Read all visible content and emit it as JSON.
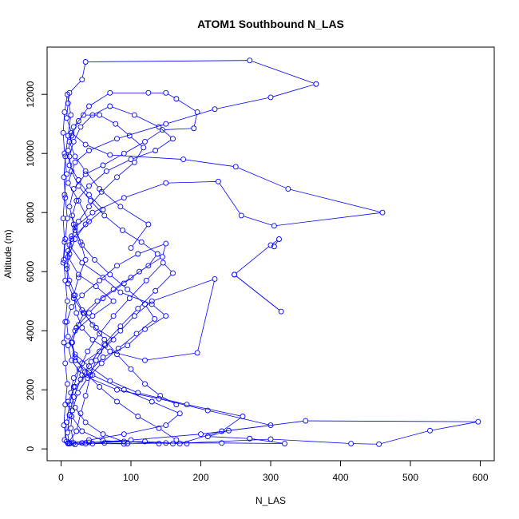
{
  "chart_data": {
    "type": "line",
    "title": "ATOM1 Southbound N_LAS",
    "xlabel": "N_LAS",
    "ylabel": "Altitude (m)",
    "xlim": [
      -20,
      620
    ],
    "ylim": [
      -400,
      13600
    ],
    "x_ticks": [
      0,
      100,
      200,
      300,
      400,
      500,
      600
    ],
    "y_ticks": [
      0,
      2000,
      4000,
      6000,
      8000,
      10000,
      12000
    ],
    "x_tick_labels": [
      "0",
      "100",
      "200",
      "300",
      "400",
      "500",
      "600"
    ],
    "y_tick_labels": [
      "0",
      "2000",
      "4000",
      "6000",
      "8000",
      "10000",
      "12000"
    ],
    "marker": "open-circle",
    "grid": false,
    "series_color": "#0000ff",
    "series": [
      {
        "points": [
          [
            20,
            150
          ],
          [
            45,
            180
          ],
          [
            90,
            170
          ],
          [
            150,
            200
          ],
          [
            230,
            200
          ],
          [
            320,
            180
          ],
          [
            270,
            350
          ],
          [
            210,
            420
          ],
          [
            240,
            620
          ],
          [
            350,
            950
          ],
          [
            597,
            920
          ],
          [
            528,
            620
          ],
          [
            455,
            160
          ],
          [
            415,
            180
          ],
          [
            300,
            330
          ],
          [
            160,
            180
          ],
          [
            60,
            280
          ],
          [
            30,
            600
          ],
          [
            15,
            1100
          ],
          [
            10,
            1600
          ],
          [
            20,
            2100
          ],
          [
            40,
            2600
          ],
          [
            60,
            3100
          ],
          [
            95,
            3500
          ],
          [
            120,
            4050
          ],
          [
            150,
            4500
          ],
          [
            130,
            4900
          ],
          [
            85,
            5300
          ],
          [
            60,
            5800
          ],
          [
            30,
            6300
          ],
          [
            12,
            6900
          ],
          [
            20,
            7500
          ],
          [
            45,
            8000
          ],
          [
            90,
            8500
          ],
          [
            150,
            9000
          ],
          [
            225,
            9050
          ],
          [
            258,
            7900
          ],
          [
            305,
            7550
          ],
          [
            460,
            8000
          ],
          [
            325,
            8800
          ],
          [
            250,
            9550
          ],
          [
            175,
            9800
          ],
          [
            70,
            9950
          ],
          [
            35,
            10300
          ],
          [
            15,
            10700
          ],
          [
            8,
            11200
          ],
          [
            10,
            11700
          ],
          [
            12,
            12050
          ],
          [
            30,
            12500
          ],
          [
            35,
            13100
          ],
          [
            270,
            13150
          ],
          [
            365,
            12350
          ],
          [
            300,
            11900
          ],
          [
            220,
            11500
          ],
          [
            150,
            11000
          ],
          [
            80,
            10500
          ],
          [
            40,
            10100
          ],
          [
            20,
            9700
          ],
          [
            10,
            9000
          ],
          [
            25,
            8400
          ],
          [
            40,
            7700
          ],
          [
            15,
            7100
          ],
          [
            10,
            6500
          ],
          [
            25,
            5900
          ],
          [
            50,
            5500
          ],
          [
            75,
            5000
          ],
          [
            45,
            4500
          ],
          [
            20,
            4000
          ],
          [
            10,
            3500
          ],
          [
            15,
            3000
          ],
          [
            30,
            2500
          ],
          [
            80,
            2000
          ],
          [
            140,
            1700
          ],
          [
            210,
            1300
          ],
          [
            300,
            800
          ],
          [
            200,
            500
          ],
          [
            100,
            300
          ],
          [
            30,
            200
          ],
          [
            10,
            180
          ]
        ]
      },
      {
        "points": [
          [
            12,
            180
          ],
          [
            40,
            220
          ],
          [
            120,
            250
          ],
          [
            170,
            180
          ],
          [
            230,
            600
          ],
          [
            260,
            1100
          ],
          [
            180,
            1500
          ],
          [
            110,
            1900
          ],
          [
            70,
            2300
          ],
          [
            40,
            2800
          ],
          [
            20,
            3200
          ],
          [
            10,
            3800
          ],
          [
            8,
            4300
          ],
          [
            15,
            4800
          ],
          [
            30,
            5200
          ],
          [
            55,
            5700
          ],
          [
            80,
            6200
          ],
          [
            110,
            6600
          ],
          [
            150,
            6950
          ],
          [
            145,
            6500
          ],
          [
            112,
            6000
          ],
          [
            90,
            5600
          ],
          [
            60,
            5100
          ],
          [
            40,
            4600
          ],
          [
            25,
            4200
          ],
          [
            15,
            3600
          ],
          [
            20,
            3000
          ],
          [
            45,
            2500
          ],
          [
            90,
            2000
          ],
          [
            130,
            1600
          ],
          [
            170,
            1200
          ],
          [
            150,
            800
          ],
          [
            90,
            500
          ],
          [
            40,
            300
          ],
          [
            15,
            200
          ]
        ]
      },
      {
        "points": [
          [
            10,
            200
          ],
          [
            22,
            600
          ],
          [
            28,
            1200
          ],
          [
            35,
            1800
          ],
          [
            42,
            2500
          ],
          [
            50,
            3000
          ],
          [
            63,
            3500
          ],
          [
            85,
            4000
          ],
          [
            105,
            4500
          ],
          [
            130,
            5000
          ],
          [
            220,
            5750
          ],
          [
            195,
            3250
          ],
          [
            120,
            3000
          ],
          [
            70,
            3300
          ],
          [
            45,
            3700
          ],
          [
            30,
            4100
          ],
          [
            22,
            4600
          ],
          [
            18,
            5200
          ],
          [
            25,
            5800
          ],
          [
            35,
            6400
          ],
          [
            28,
            7000
          ],
          [
            18,
            7600
          ],
          [
            12,
            8200
          ],
          [
            18,
            8800
          ],
          [
            35,
            9300
          ],
          [
            60,
            9600
          ],
          [
            90,
            10000
          ],
          [
            120,
            10400
          ],
          [
            145,
            10800
          ],
          [
            190,
            10850
          ],
          [
            195,
            11400
          ],
          [
            165,
            11850
          ],
          [
            150,
            12050
          ],
          [
            125,
            12050
          ],
          [
            70,
            12050
          ],
          [
            40,
            11600
          ],
          [
            25,
            11100
          ],
          [
            15,
            10600
          ],
          [
            10,
            10100
          ],
          [
            12,
            9600
          ],
          [
            25,
            9100
          ],
          [
            40,
            8600
          ],
          [
            60,
            8100
          ],
          [
            35,
            7600
          ],
          [
            20,
            7100
          ],
          [
            12,
            6600
          ],
          [
            8,
            6100
          ],
          [
            10,
            5600
          ],
          [
            18,
            5100
          ],
          [
            32,
            4600
          ],
          [
            50,
            4100
          ],
          [
            75,
            3700
          ],
          [
            55,
            3300
          ],
          [
            30,
            2900
          ],
          [
            18,
            2400
          ],
          [
            14,
            1900
          ],
          [
            20,
            1400
          ],
          [
            35,
            900
          ],
          [
            60,
            500
          ],
          [
            90,
            250
          ],
          [
            140,
            180
          ]
        ]
      },
      {
        "points": [
          [
            18,
            200
          ],
          [
            14,
            700
          ],
          [
            16,
            1300
          ],
          [
            24,
            1900
          ],
          [
            38,
            2400
          ],
          [
            58,
            2900
          ],
          [
            82,
            3400
          ],
          [
            108,
            3900
          ],
          [
            134,
            4400
          ],
          [
            120,
            4900
          ],
          [
            95,
            5400
          ],
          [
            70,
            5900
          ],
          [
            48,
            6400
          ],
          [
            30,
            6900
          ],
          [
            20,
            7400
          ],
          [
            16,
            7900
          ],
          [
            22,
            8400
          ],
          [
            40,
            8900
          ],
          [
            65,
            9400
          ],
          [
            100,
            9800
          ],
          [
            135,
            10100
          ],
          [
            160,
            10500
          ],
          [
            140,
            10900
          ],
          [
            105,
            11300
          ],
          [
            70,
            11600
          ],
          [
            45,
            11300
          ],
          [
            28,
            10900
          ],
          [
            18,
            10400
          ],
          [
            12,
            9900
          ],
          [
            15,
            9400
          ],
          [
            25,
            8900
          ],
          [
            42,
            8400
          ],
          [
            62,
            7900
          ],
          [
            88,
            7400
          ],
          [
            115,
            7000
          ],
          [
            138,
            6600
          ],
          [
            125,
            6200
          ],
          [
            100,
            5800
          ],
          [
            75,
            5400
          ],
          [
            52,
            5000
          ],
          [
            33,
            4600
          ],
          [
            22,
            4100
          ],
          [
            16,
            3600
          ],
          [
            20,
            3100
          ],
          [
            34,
            2600
          ],
          [
            55,
            2100
          ],
          [
            80,
            1600
          ],
          [
            110,
            1100
          ],
          [
            140,
            700
          ],
          [
            165,
            300
          ],
          [
            180,
            180
          ]
        ]
      },
      {
        "points": [
          [
            5,
            300
          ],
          [
            8,
            900
          ],
          [
            12,
            1500
          ],
          [
            18,
            2100
          ],
          [
            26,
            2700
          ],
          [
            38,
            3300
          ],
          [
            55,
            3900
          ],
          [
            75,
            4500
          ],
          [
            98,
            5100
          ],
          [
            122,
            5700
          ],
          [
            146,
            6300
          ],
          [
            160,
            5950
          ],
          [
            135,
            5350
          ],
          [
            110,
            4750
          ],
          [
            85,
            4150
          ],
          [
            62,
            3550
          ],
          [
            43,
            2950
          ],
          [
            28,
            2350
          ],
          [
            18,
            1750
          ],
          [
            12,
            1150
          ],
          [
            9,
            550
          ],
          [
            12,
            200
          ],
          [
            35,
            180
          ],
          [
            62,
            200
          ],
          [
            95,
            180
          ]
        ]
      },
      {
        "points": [
          [
            100,
            6800
          ],
          [
            125,
            7600
          ],
          [
            85,
            8200
          ],
          [
            55,
            8800
          ],
          [
            35,
            9400
          ],
          [
            20,
            9900
          ],
          [
            12,
            10400
          ],
          [
            18,
            10900
          ],
          [
            32,
            11300
          ],
          [
            55,
            11300
          ],
          [
            78,
            11000
          ],
          [
            98,
            10600
          ],
          [
            118,
            10200
          ],
          [
            105,
            9700
          ],
          [
            80,
            9200
          ],
          [
            58,
            8700
          ],
          [
            40,
            8200
          ],
          [
            25,
            7700
          ],
          [
            15,
            7200
          ],
          [
            10,
            6700
          ],
          [
            8,
            6200
          ],
          [
            12,
            5700
          ],
          [
            20,
            5200
          ],
          [
            30,
            4700
          ],
          [
            45,
            4200
          ],
          [
            62,
            3700
          ],
          [
            80,
            3200
          ],
          [
            100,
            2700
          ],
          [
            120,
            2200
          ],
          [
            142,
            1800
          ],
          [
            165,
            1500
          ]
        ]
      },
      {
        "points": [
          [
            305,
            6850
          ],
          [
            312,
            7100
          ],
          [
            300,
            6900
          ],
          [
            248,
            5900
          ],
          [
            315,
            4650
          ],
          [
            248,
            5900
          ]
        ]
      },
      {
        "points": [
          [
            3,
            6300
          ],
          [
            5,
            7000
          ],
          [
            3,
            7800
          ],
          [
            5,
            8600
          ],
          [
            8,
            9300
          ],
          [
            5,
            10000
          ],
          [
            3,
            10700
          ],
          [
            5,
            11400
          ],
          [
            9,
            12000
          ],
          [
            14,
            11300
          ],
          [
            10,
            10600
          ],
          [
            6,
            9900
          ],
          [
            4,
            9200
          ],
          [
            6,
            8500
          ],
          [
            9,
            7800
          ],
          [
            6,
            7100
          ],
          [
            4,
            6400
          ],
          [
            6,
            5700
          ],
          [
            9,
            5000
          ],
          [
            6,
            4300
          ],
          [
            4,
            3600
          ],
          [
            6,
            2900
          ],
          [
            9,
            2200
          ],
          [
            6,
            1500
          ],
          [
            4,
            800
          ],
          [
            8,
            250
          ]
        ]
      }
    ]
  }
}
